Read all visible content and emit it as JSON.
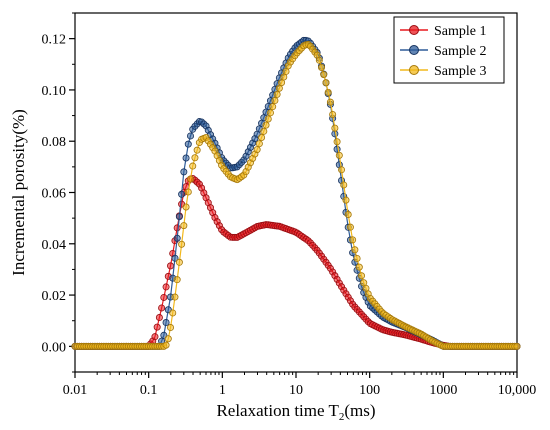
{
  "chart_data": {
    "type": "scatter",
    "title": "",
    "xlabel": {
      "main": "Relaxation time T",
      "sub": "2",
      "unit": "(ms)"
    },
    "ylabel": "Incremental porosity(%)",
    "xscale": "log",
    "xlim": [
      0.01,
      10000
    ],
    "ylim": [
      -0.01,
      0.13
    ],
    "x_ticks": [
      0.01,
      0.1,
      1,
      10,
      100,
      1000,
      10000
    ],
    "x_tick_labels": [
      "0.01",
      "0.1",
      "1",
      "10",
      "100",
      "1000",
      "10,000"
    ],
    "y_ticks": [
      0.0,
      0.02,
      0.04,
      0.06,
      0.08,
      0.1,
      0.12
    ],
    "y_tick_labels": [
      "0.00",
      "0.02",
      "0.04",
      "0.06",
      "0.08",
      "0.10",
      "0.12"
    ],
    "grid": false,
    "legend_position": "top-right",
    "markers": "open-circle-connected",
    "series": [
      {
        "name": "Sample 1",
        "color": "#e8191f",
        "edge": "#9a0c10",
        "points": [
          [
            0.01,
            0
          ],
          [
            0.1,
            0
          ],
          [
            0.12,
            0.003
          ],
          [
            0.15,
            0.015
          ],
          [
            0.2,
            0.032
          ],
          [
            0.25,
            0.048
          ],
          [
            0.3,
            0.06
          ],
          [
            0.35,
            0.065
          ],
          [
            0.4,
            0.0655
          ],
          [
            0.5,
            0.063
          ],
          [
            0.6,
            0.058
          ],
          [
            0.8,
            0.05
          ],
          [
            1.0,
            0.045
          ],
          [
            1.3,
            0.0425
          ],
          [
            1.6,
            0.0425
          ],
          [
            2.0,
            0.044
          ],
          [
            3.0,
            0.0468
          ],
          [
            4.0,
            0.0475
          ],
          [
            6.0,
            0.0468
          ],
          [
            10,
            0.0445
          ],
          [
            15,
            0.041
          ],
          [
            20,
            0.037
          ],
          [
            30,
            0.03
          ],
          [
            40,
            0.024
          ],
          [
            60,
            0.016
          ],
          [
            100,
            0.009
          ],
          [
            150,
            0.0065
          ],
          [
            200,
            0.0055
          ],
          [
            300,
            0.0045
          ],
          [
            500,
            0.0028
          ],
          [
            700,
            0.0015
          ],
          [
            1000,
            0.0004
          ],
          [
            1200,
            0
          ],
          [
            10000,
            0
          ]
        ]
      },
      {
        "name": "Sample 2",
        "color": "#2e5c99",
        "edge": "#16325e",
        "points": [
          [
            0.01,
            0
          ],
          [
            0.14,
            0
          ],
          [
            0.16,
            0.004
          ],
          [
            0.2,
            0.02
          ],
          [
            0.25,
            0.045
          ],
          [
            0.3,
            0.068
          ],
          [
            0.35,
            0.08
          ],
          [
            0.4,
            0.085
          ],
          [
            0.5,
            0.088
          ],
          [
            0.6,
            0.086
          ],
          [
            0.8,
            0.079
          ],
          [
            1.0,
            0.073
          ],
          [
            1.3,
            0.0695
          ],
          [
            1.6,
            0.07
          ],
          [
            2.0,
            0.073
          ],
          [
            3.0,
            0.083
          ],
          [
            4.0,
            0.092
          ],
          [
            6.0,
            0.105
          ],
          [
            8.0,
            0.113
          ],
          [
            10,
            0.117
          ],
          [
            13,
            0.1195
          ],
          [
            15,
            0.119
          ],
          [
            20,
            0.114
          ],
          [
            25,
            0.104
          ],
          [
            30,
            0.093
          ],
          [
            40,
            0.068
          ],
          [
            50,
            0.048
          ],
          [
            60,
            0.035
          ],
          [
            80,
            0.022
          ],
          [
            100,
            0.016
          ],
          [
            150,
            0.0115
          ],
          [
            200,
            0.0095
          ],
          [
            300,
            0.0075
          ],
          [
            500,
            0.0045
          ],
          [
            700,
            0.0025
          ],
          [
            900,
            0.0008
          ],
          [
            1000,
            0
          ],
          [
            10000,
            0
          ]
        ]
      },
      {
        "name": "Sample 3",
        "color": "#f2b81c",
        "edge": "#a67808",
        "points": [
          [
            0.01,
            0
          ],
          [
            0.17,
            0
          ],
          [
            0.19,
            0.004
          ],
          [
            0.22,
            0.016
          ],
          [
            0.27,
            0.036
          ],
          [
            0.33,
            0.057
          ],
          [
            0.4,
            0.071
          ],
          [
            0.5,
            0.0805
          ],
          [
            0.6,
            0.0815
          ],
          [
            0.8,
            0.076
          ],
          [
            1.0,
            0.07
          ],
          [
            1.3,
            0.066
          ],
          [
            1.6,
            0.065
          ],
          [
            2.0,
            0.067
          ],
          [
            3.0,
            0.077
          ],
          [
            4.0,
            0.087
          ],
          [
            6.0,
            0.101
          ],
          [
            8.0,
            0.11
          ],
          [
            10,
            0.114
          ],
          [
            13,
            0.1175
          ],
          [
            15,
            0.1178
          ],
          [
            20,
            0.113
          ],
          [
            25,
            0.104
          ],
          [
            30,
            0.094
          ],
          [
            40,
            0.072
          ],
          [
            50,
            0.053
          ],
          [
            60,
            0.04
          ],
          [
            80,
            0.026
          ],
          [
            100,
            0.019
          ],
          [
            150,
            0.013
          ],
          [
            200,
            0.0105
          ],
          [
            300,
            0.0078
          ],
          [
            500,
            0.0048
          ],
          [
            700,
            0.0022
          ],
          [
            900,
            0.0006
          ],
          [
            1000,
            0
          ],
          [
            10000,
            0
          ]
        ]
      }
    ]
  }
}
